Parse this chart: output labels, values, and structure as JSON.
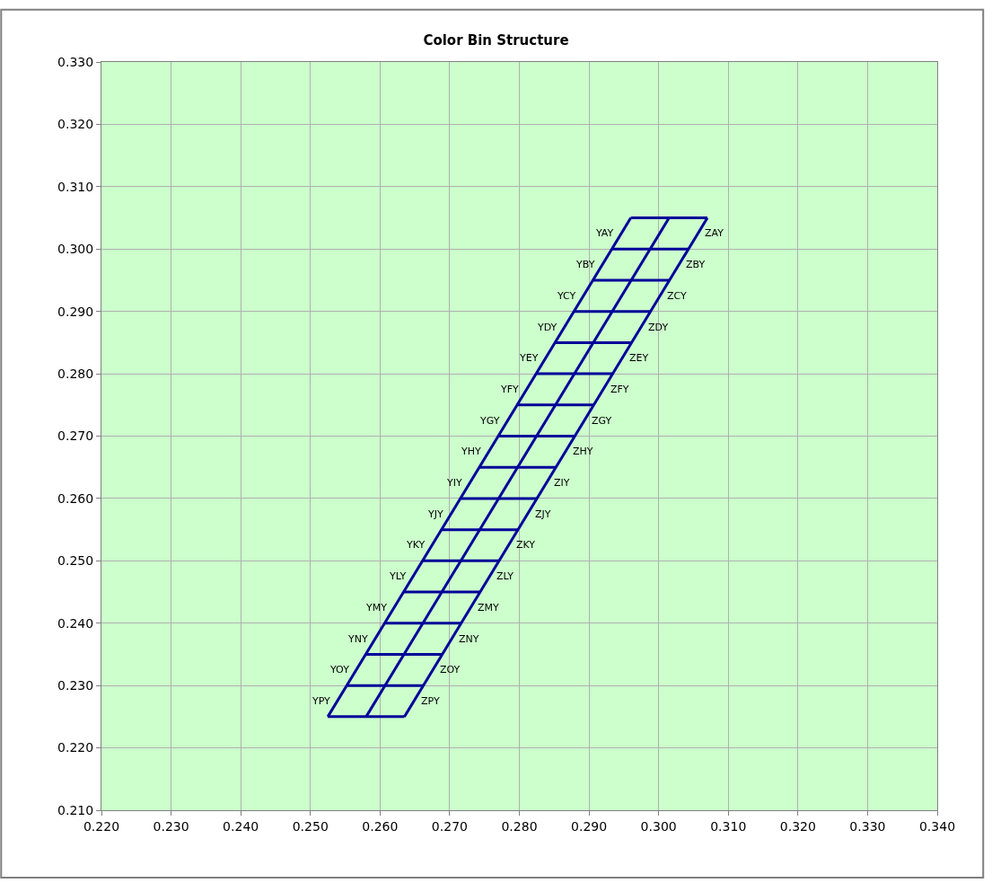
{
  "chart_data": {
    "type": "line",
    "title": "Color Bin Structure",
    "xlim": [
      0.22,
      0.34
    ],
    "xticks": [
      {
        "value": 0.22,
        "label": "0.220"
      },
      {
        "value": 0.23,
        "label": "0.230"
      },
      {
        "value": 0.24,
        "label": "0.240"
      },
      {
        "value": 0.25,
        "label": "0.250"
      },
      {
        "value": 0.26,
        "label": "0.260"
      },
      {
        "value": 0.27,
        "label": "0.270"
      },
      {
        "value": 0.28,
        "label": "0.280"
      },
      {
        "value": 0.29,
        "label": "0.290"
      },
      {
        "value": 0.3,
        "label": "0.300"
      },
      {
        "value": 0.31,
        "label": "0.310"
      },
      {
        "value": 0.32,
        "label": "0.320"
      },
      {
        "value": 0.33,
        "label": "0.330"
      },
      {
        "value": 0.34,
        "label": "0.340"
      }
    ],
    "ylim": [
      0.21,
      0.33
    ],
    "yticks": [
      {
        "value": 0.21,
        "label": "0.210"
      },
      {
        "value": 0.22,
        "label": "0.220"
      },
      {
        "value": 0.23,
        "label": "0.230"
      },
      {
        "value": 0.24,
        "label": "0.240"
      },
      {
        "value": 0.25,
        "label": "0.250"
      },
      {
        "value": 0.26,
        "label": "0.260"
      },
      {
        "value": 0.27,
        "label": "0.270"
      },
      {
        "value": 0.28,
        "label": "0.280"
      },
      {
        "value": 0.29,
        "label": "0.290"
      },
      {
        "value": 0.3,
        "label": "0.300"
      },
      {
        "value": 0.31,
        "label": "0.310"
      },
      {
        "value": 0.32,
        "label": "0.320"
      },
      {
        "value": 0.33,
        "label": "0.330"
      }
    ],
    "grid": true,
    "marker": "none",
    "line_style": "solid",
    "series": [
      {
        "color": "#000099",
        "x": [
          0.2525,
          0.296
        ],
        "values": [
          0.225,
          0.305
        ]
      },
      {
        "color": "#000099",
        "x": [
          0.258,
          0.3015
        ],
        "values": [
          0.225,
          0.305
        ]
      },
      {
        "color": "#000099",
        "x": [
          0.2635,
          0.307
        ],
        "values": [
          0.225,
          0.305
        ]
      },
      {
        "color": "#000099",
        "x": [
          0.2525,
          0.2635
        ],
        "values": [
          0.225,
          0.225
        ]
      },
      {
        "color": "#000099",
        "x": [
          0.2552,
          0.2662
        ],
        "values": [
          0.23,
          0.23
        ]
      },
      {
        "color": "#000099",
        "x": [
          0.2579,
          0.2689
        ],
        "values": [
          0.235,
          0.235
        ]
      },
      {
        "color": "#000099",
        "x": [
          0.2607,
          0.2717
        ],
        "values": [
          0.24,
          0.24
        ]
      },
      {
        "color": "#000099",
        "x": [
          0.2634,
          0.2744
        ],
        "values": [
          0.245,
          0.245
        ]
      },
      {
        "color": "#000099",
        "x": [
          0.2661,
          0.2771
        ],
        "values": [
          0.25,
          0.25
        ]
      },
      {
        "color": "#000099",
        "x": [
          0.2688,
          0.2798
        ],
        "values": [
          0.255,
          0.255
        ]
      },
      {
        "color": "#000099",
        "x": [
          0.2715,
          0.2825
        ],
        "values": [
          0.26,
          0.26
        ]
      },
      {
        "color": "#000099",
        "x": [
          0.2743,
          0.2853
        ],
        "values": [
          0.265,
          0.265
        ]
      },
      {
        "color": "#000099",
        "x": [
          0.277,
          0.288
        ],
        "values": [
          0.27,
          0.27
        ]
      },
      {
        "color": "#000099",
        "x": [
          0.2797,
          0.2907
        ],
        "values": [
          0.275,
          0.275
        ]
      },
      {
        "color": "#000099",
        "x": [
          0.2824,
          0.2934
        ],
        "values": [
          0.28,
          0.28
        ]
      },
      {
        "color": "#000099",
        "x": [
          0.2851,
          0.2961
        ],
        "values": [
          0.285,
          0.285
        ]
      },
      {
        "color": "#000099",
        "x": [
          0.2878,
          0.2988
        ],
        "values": [
          0.29,
          0.29
        ]
      },
      {
        "color": "#000099",
        "x": [
          0.2906,
          0.3016
        ],
        "values": [
          0.295,
          0.295
        ]
      },
      {
        "color": "#000099",
        "x": [
          0.2933,
          0.3043
        ],
        "values": [
          0.3,
          0.3
        ]
      },
      {
        "color": "#000099",
        "x": [
          0.296,
          0.307
        ],
        "values": [
          0.305,
          0.305
        ]
      }
    ],
    "annotations": [
      {
        "text": "YAY",
        "x": 0.2946,
        "y": 0.3025
      },
      {
        "text": "YBY",
        "x": 0.2919,
        "y": 0.2975
      },
      {
        "text": "YCY",
        "x": 0.2892,
        "y": 0.2925
      },
      {
        "text": "YDY",
        "x": 0.2865,
        "y": 0.2875
      },
      {
        "text": "YEY",
        "x": 0.2838,
        "y": 0.2825
      },
      {
        "text": "YFY",
        "x": 0.281,
        "y": 0.2775
      },
      {
        "text": "YGY",
        "x": 0.2783,
        "y": 0.2725
      },
      {
        "text": "YHY",
        "x": 0.2756,
        "y": 0.2675
      },
      {
        "text": "YIY",
        "x": 0.2729,
        "y": 0.2625
      },
      {
        "text": "YJY",
        "x": 0.2702,
        "y": 0.2575
      },
      {
        "text": "YKY",
        "x": 0.2675,
        "y": 0.2525
      },
      {
        "text": "YLY",
        "x": 0.2647,
        "y": 0.2475
      },
      {
        "text": "YMY",
        "x": 0.262,
        "y": 0.2425
      },
      {
        "text": "YNY",
        "x": 0.2593,
        "y": 0.2375
      },
      {
        "text": "YOY",
        "x": 0.2566,
        "y": 0.2325
      },
      {
        "text": "YPY",
        "x": 0.2539,
        "y": 0.2275
      },
      {
        "text": "ZAY",
        "x": 0.3056,
        "y": 0.3025
      },
      {
        "text": "ZBY",
        "x": 0.3029,
        "y": 0.2975
      },
      {
        "text": "ZCY",
        "x": 0.3002,
        "y": 0.2925
      },
      {
        "text": "ZDY",
        "x": 0.2975,
        "y": 0.2875
      },
      {
        "text": "ZEY",
        "x": 0.2948,
        "y": 0.2825
      },
      {
        "text": "ZFY",
        "x": 0.292,
        "y": 0.2775
      },
      {
        "text": "ZGY",
        "x": 0.2893,
        "y": 0.2725
      },
      {
        "text": "ZHY",
        "x": 0.2866,
        "y": 0.2675
      },
      {
        "text": "ZIY",
        "x": 0.2839,
        "y": 0.2625
      },
      {
        "text": "ZJY",
        "x": 0.2812,
        "y": 0.2575
      },
      {
        "text": "ZKY",
        "x": 0.2785,
        "y": 0.2525
      },
      {
        "text": "ZLY",
        "x": 0.2757,
        "y": 0.2475
      },
      {
        "text": "ZMY",
        "x": 0.273,
        "y": 0.2425
      },
      {
        "text": "ZNY",
        "x": 0.2703,
        "y": 0.2375
      },
      {
        "text": "ZOY",
        "x": 0.2676,
        "y": 0.2325
      },
      {
        "text": "ZPY",
        "x": 0.2649,
        "y": 0.2275
      }
    ]
  }
}
